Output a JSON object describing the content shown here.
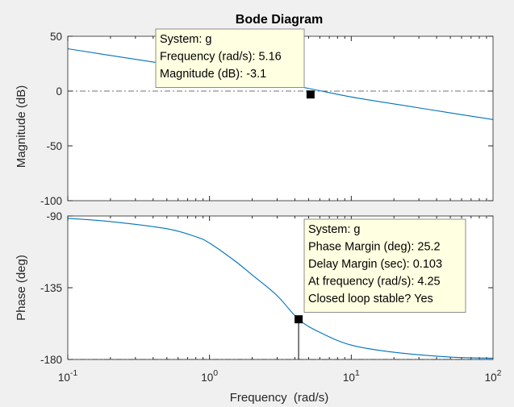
{
  "figure": {
    "title": "Bode Diagram",
    "background": "#f0f0f0",
    "axes_background": "#ffffff",
    "line_color": "#0072bd",
    "axes_color": "#262626",
    "reference_line_color": "#707070"
  },
  "chart_data": [
    {
      "type": "line",
      "panel": "magnitude",
      "ylabel": "Magnitude (dB)",
      "ylim": [
        -100,
        50
      ],
      "yticks": [
        50,
        0,
        -50,
        -100
      ],
      "ytick_labels": [
        "50",
        "0",
        "-50",
        "-100"
      ],
      "xlim": [
        0.1,
        100
      ],
      "x_scale": "log",
      "grid": false,
      "reference_line": 0,
      "series": [
        {
          "x": [
            0.1,
            0.2,
            0.5,
            1,
            2,
            5,
            10,
            20,
            50,
            100
          ],
          "y": [
            38.6,
            32.5,
            24.6,
            18.6,
            12.3,
            2.4,
            -5.4,
            -11.7,
            -19.9,
            -26.0
          ]
        }
      ],
      "marker": {
        "x": 5.16,
        "y": -3.1
      },
      "datatip": [
        "System: g",
        "Frequency (rad/s): 5.16",
        "Magnitude (dB): -3.1"
      ]
    },
    {
      "type": "line",
      "panel": "phase",
      "ylabel": "Phase (deg)",
      "ylim": [
        -180,
        -90
      ],
      "yticks": [
        -90,
        -135,
        -180
      ],
      "ytick_labels": [
        "-90",
        "-135",
        "-180"
      ],
      "xlim": [
        0.1,
        100
      ],
      "x_scale": "log",
      "xlabel": "Frequency  (rad/s)",
      "xticks": [
        0.1,
        1,
        10,
        100
      ],
      "xtick_bases": [
        "10",
        "10",
        "10",
        "10"
      ],
      "xtick_exponents": [
        "-1",
        "0",
        "1",
        "2"
      ],
      "grid": false,
      "reference_line": -180,
      "series": [
        {
          "x": [
            0.1,
            0.2,
            0.5,
            0.8,
            1,
            1.5,
            2,
            3,
            4.25,
            6,
            10,
            20,
            50,
            100
          ],
          "y": [
            -91.5,
            -93.5,
            -98,
            -103,
            -107,
            -118,
            -127,
            -140,
            -154.8,
            -163,
            -171,
            -175.5,
            -178.5,
            -179.2
          ]
        }
      ],
      "marker": {
        "x": 4.25,
        "y": -154.8
      },
      "datatip": [
        "System: g",
        "Phase Margin (deg): 25.2",
        "Delay Margin (sec): 0.103",
        "At frequency (rad/s): 4.25",
        "Closed loop stable? Yes"
      ]
    }
  ]
}
